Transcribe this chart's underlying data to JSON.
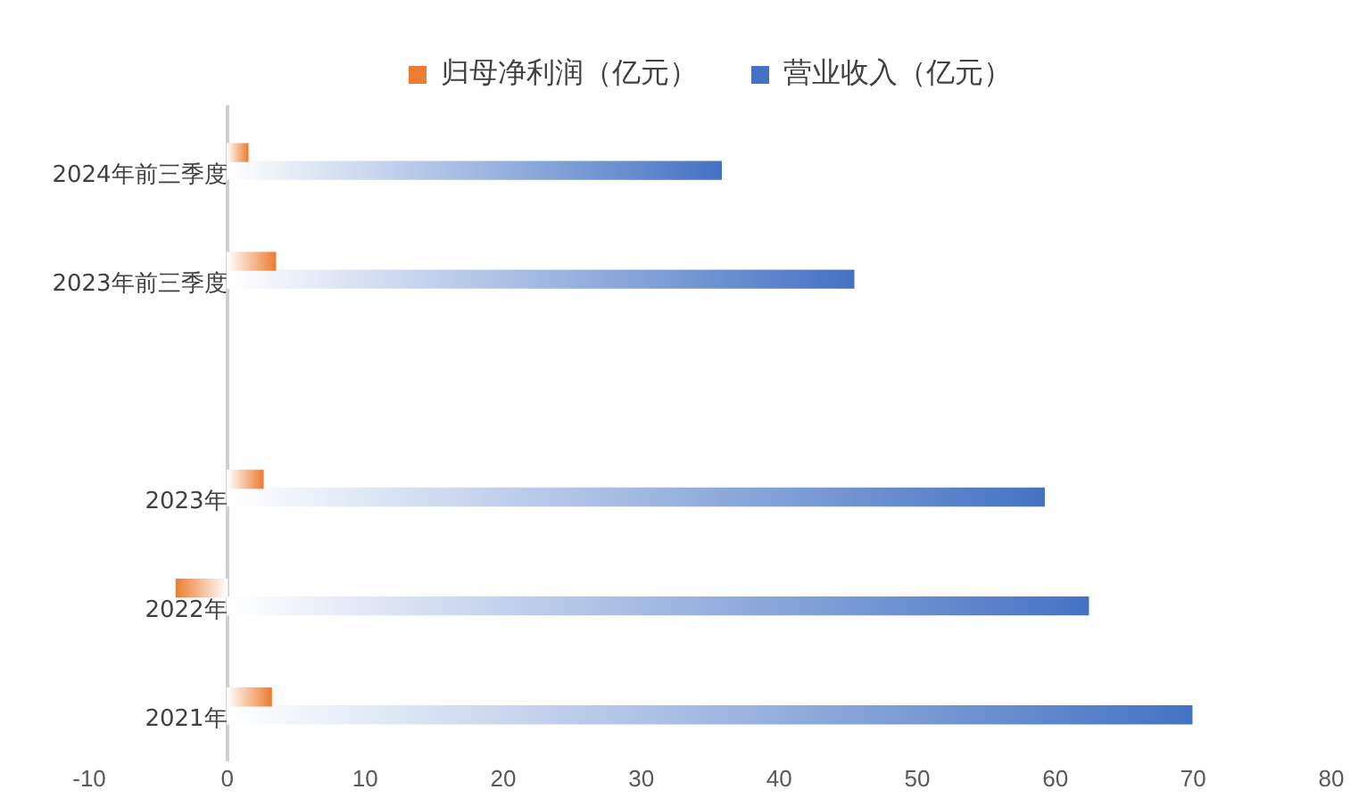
{
  "chart_data": {
    "type": "bar",
    "orientation": "horizontal",
    "categories": [
      "2024年前三季度",
      "2023年前三季度",
      null,
      "2023年",
      "2022年",
      "2021年"
    ],
    "series": [
      {
        "name": "归母净利润（亿元）",
        "color": "#ed7d31",
        "values": [
          1.5,
          3.5,
          null,
          2.6,
          -3.7,
          3.2
        ]
      },
      {
        "name": "营业收入（亿元）",
        "color": "#4472c4",
        "values": [
          35.8,
          45.4,
          null,
          59.2,
          62.4,
          69.9
        ]
      }
    ],
    "xlim": [
      -10,
      80
    ],
    "xticks": [
      -10,
      0,
      10,
      20,
      30,
      40,
      50,
      60,
      70,
      80
    ],
    "grid": false,
    "legend": "top"
  }
}
